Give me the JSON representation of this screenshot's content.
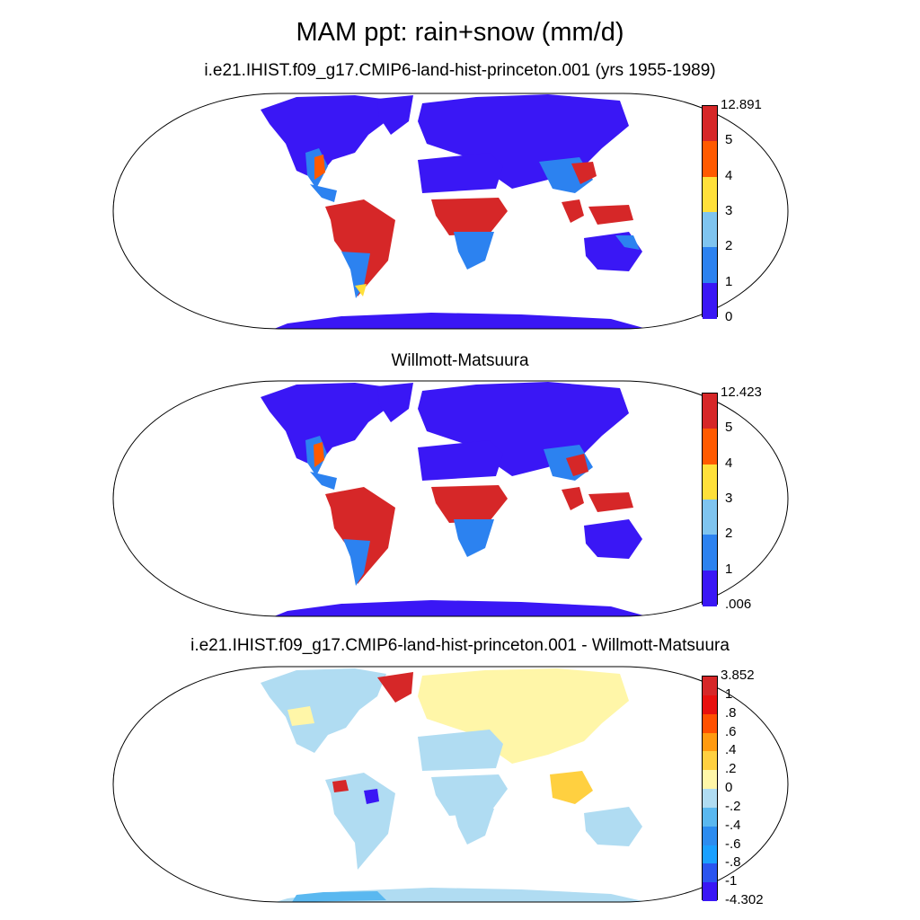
{
  "title": "MAM ppt: rain+snow (mm/d)",
  "panels": [
    {
      "title": "i.e21.IHIST.f09_g17.CMIP6-land-hist-princeton.001 (yrs 1955-1989)",
      "colorbar": {
        "labels": [
          "12.891",
          "5",
          "4",
          "3",
          "2",
          "1",
          "0"
        ],
        "colors": [
          "#d62728",
          "#ff5a00",
          "#ffe03a",
          "#7fc4ef",
          "#2c82f0",
          "#3a17f5"
        ]
      }
    },
    {
      "title": "Willmott-Matsuura",
      "colorbar": {
        "labels": [
          "12.423",
          "5",
          "4",
          "3",
          "2",
          "1",
          ".006"
        ],
        "colors": [
          "#d62728",
          "#ff5a00",
          "#ffe03a",
          "#7fc4ef",
          "#2c82f0",
          "#3a17f5"
        ]
      }
    },
    {
      "title": "i.e21.IHIST.f09_g17.CMIP6-land-hist-princeton.001 - Willmott-Matsuura",
      "colorbar": {
        "labels": [
          "3.852",
          "1",
          ".8",
          ".6",
          ".4",
          ".2",
          "0",
          "-.2",
          "-.4",
          "-.6",
          "-.8",
          "-1",
          "-4.302"
        ],
        "colors": [
          "#d62728",
          "#e8100e",
          "#ff5000",
          "#ff9a10",
          "#ffd040",
          "#fff6a8",
          "#b0dcf2",
          "#5ab8f0",
          "#2c8cf0",
          "#1aa0ff",
          "#2a55f0",
          "#3a17f5"
        ]
      }
    }
  ]
}
